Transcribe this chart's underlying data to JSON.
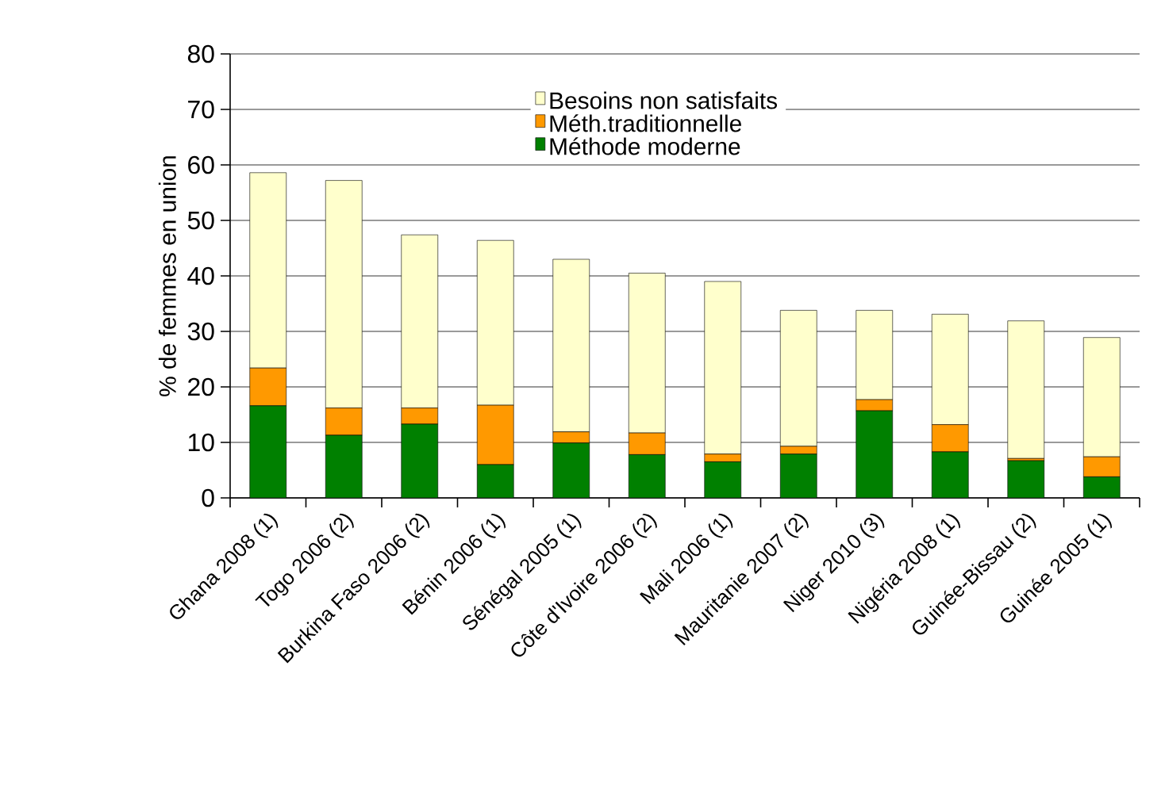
{
  "chart_data": {
    "type": "bar",
    "stacked": true,
    "ylabel": "% de femmes en union",
    "categories": [
      "Ghana 2008 (1)",
      "Togo 2006 (2)",
      "Burkina Faso 2006 (2)",
      "Bénin 2006 (1)",
      "Sénégal 2005 (1)",
      "Côte d'Ivoire 2006 (2)",
      "Mali 2006 (1)",
      "Mauritanie 2007 (2)",
      "Niger 2010 (3)",
      "Nigéria 2008 (1)",
      "Guinée-Bissau (2)",
      "Guinée 2005 (1)"
    ],
    "series": [
      {
        "name": "Méthode moderne",
        "color": "#008000",
        "values": [
          16.6,
          11.3,
          13.3,
          6.0,
          9.9,
          7.8,
          6.5,
          7.9,
          15.7,
          8.3,
          6.7,
          3.8
        ]
      },
      {
        "name": "Méth.traditionnelle",
        "color": "#ff9900",
        "values": [
          6.8,
          4.9,
          2.9,
          10.7,
          2.0,
          3.9,
          1.4,
          1.4,
          2.0,
          4.9,
          0.4,
          3.6
        ]
      },
      {
        "name": "Besoins non satisfaits",
        "color": "#ffffcc",
        "values": [
          35.2,
          41.0,
          31.2,
          29.7,
          31.1,
          28.8,
          31.1,
          24.5,
          16.1,
          19.9,
          24.8,
          21.5
        ]
      }
    ],
    "ylim": [
      0,
      80
    ],
    "yticks": [
      0,
      10,
      20,
      30,
      40,
      50,
      60,
      70,
      80
    ],
    "grid": "y",
    "legend": "top right"
  }
}
